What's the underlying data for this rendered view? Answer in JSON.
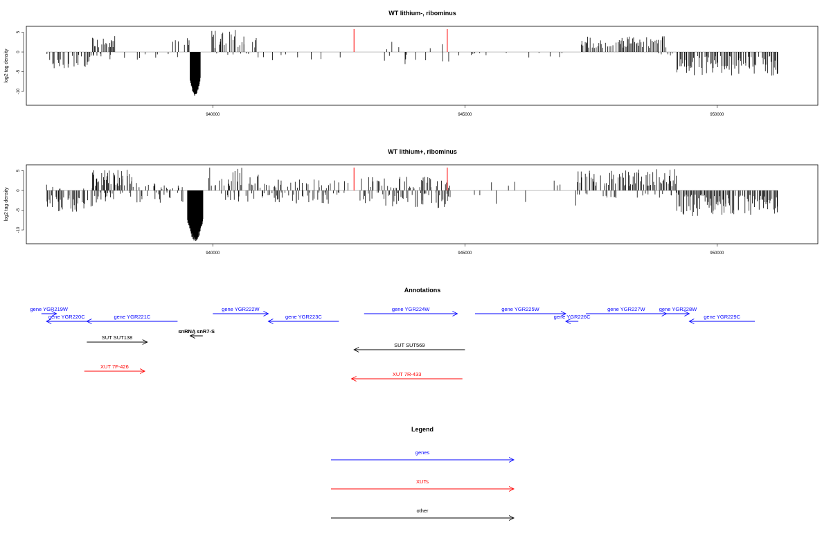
{
  "colors": {
    "positive": "#000000",
    "highlight": "#ff0000",
    "baseline": "#999999",
    "genes": "#0000ff",
    "xuts": "#ff0000",
    "other": "#000000"
  },
  "chart_data": [
    {
      "type": "bar",
      "title": "WT lithium-, ribominus",
      "ylabel": "log2 tag density",
      "xlim": [
        936300,
        952000
      ],
      "ylim": [
        -13.5,
        6.5
      ],
      "xticks": [
        940000,
        945000,
        950000
      ],
      "xtick_labels": [
        "940000",
        "945000",
        "950000"
      ],
      "yticks": [
        5,
        0,
        -5,
        -10
      ],
      "ytick_labels": [
        "5",
        "0",
        "-5",
        "-10"
      ],
      "grid": false,
      "segments": [
        {
          "x": [
            936700,
            937600
          ],
          "sign": -1,
          "min": 0.5,
          "max": 4.3,
          "density": 0.55
        },
        {
          "x": [
            937600,
            938050
          ],
          "sign": 1,
          "min": 1.0,
          "max": 4.6,
          "density": 0.7
        },
        {
          "x": [
            937600,
            939400
          ],
          "sign": -1,
          "min": 0.3,
          "max": 3.0,
          "density": 0.15
        },
        {
          "x": [
            939200,
            939550
          ],
          "sign": 1,
          "min": 1.0,
          "max": 3.5,
          "density": 0.4
        },
        {
          "x": [
            939550,
            939750
          ],
          "sign": -1,
          "min": 2.0,
          "max": 11.3,
          "density": 1.0,
          "block": true
        },
        {
          "x": [
            939950,
            940850
          ],
          "sign": 1,
          "min": 1.0,
          "max": 5.6,
          "density": 0.5
        },
        {
          "x": [
            940000,
            941000
          ],
          "sign": -1,
          "min": 0.3,
          "max": 2.0,
          "density": 0.15
        },
        {
          "x": [
            941000,
            942600
          ],
          "sign": -1,
          "min": 0.3,
          "max": 2.5,
          "density": 0.1
        },
        {
          "x": [
            943400,
            944700
          ],
          "sign": 1,
          "min": 0.5,
          "max": 3.0,
          "density": 0.12
        },
        {
          "x": [
            943400,
            944900
          ],
          "sign": -1,
          "min": 0.3,
          "max": 3.5,
          "density": 0.15
        },
        {
          "x": [
            945000,
            947200
          ],
          "sign": -1,
          "min": 0.2,
          "max": 1.5,
          "density": 0.05
        },
        {
          "x": [
            947300,
            949000
          ],
          "sign": 1,
          "min": 1.0,
          "max": 4.0,
          "density": 0.55
        },
        {
          "x": [
            948800,
            949200
          ],
          "sign": -1,
          "min": 0.3,
          "max": 1.5,
          "density": 0.2
        },
        {
          "x": [
            949200,
            951200
          ],
          "sign": -1,
          "min": 1.0,
          "max": 6.0,
          "density": 0.75
        }
      ],
      "highlights": [
        {
          "x": 942800,
          "y": 5.8
        },
        {
          "x": 944650,
          "y": 5.8
        }
      ]
    },
    {
      "type": "bar",
      "title": "WT lithium+, ribominus",
      "ylabel": "log2 tag density",
      "xlim": [
        936300,
        952000
      ],
      "ylim": [
        -13.5,
        6.5
      ],
      "xticks": [
        940000,
        945000,
        950000
      ],
      "xtick_labels": [
        "940000",
        "945000",
        "950000"
      ],
      "yticks": [
        5,
        0,
        -5,
        -10
      ],
      "ytick_labels": [
        "5",
        "0",
        "-5",
        "-10"
      ],
      "grid": false,
      "segments": [
        {
          "x": [
            936700,
            937600
          ],
          "sign": -1,
          "min": 1.0,
          "max": 5.5,
          "density": 0.75
        },
        {
          "x": [
            936700,
            937600
          ],
          "sign": 1,
          "min": 0.3,
          "max": 1.5,
          "density": 0.1
        },
        {
          "x": [
            937600,
            938400
          ],
          "sign": 1,
          "min": 1.0,
          "max": 5.5,
          "density": 0.8
        },
        {
          "x": [
            937600,
            939400
          ],
          "sign": -1,
          "min": 0.5,
          "max": 3.5,
          "density": 0.35
        },
        {
          "x": [
            938400,
            939400
          ],
          "sign": 1,
          "min": 0.3,
          "max": 2.0,
          "density": 0.2
        },
        {
          "x": [
            939500,
            939800
          ],
          "sign": -1,
          "min": 2.0,
          "max": 13.0,
          "density": 1.0,
          "block": true
        },
        {
          "x": [
            939900,
            940900
          ],
          "sign": 1,
          "min": 1.0,
          "max": 5.8,
          "density": 0.6
        },
        {
          "x": [
            940100,
            941600
          ],
          "sign": -1,
          "min": 0.5,
          "max": 3.0,
          "density": 0.4
        },
        {
          "x": [
            940900,
            942700
          ],
          "sign": 1,
          "min": 0.5,
          "max": 3.0,
          "density": 0.35
        },
        {
          "x": [
            941600,
            942700
          ],
          "sign": -1,
          "min": 0.5,
          "max": 3.5,
          "density": 0.45
        },
        {
          "x": [
            942900,
            944700
          ],
          "sign": 1,
          "min": 0.5,
          "max": 3.5,
          "density": 0.45
        },
        {
          "x": [
            942900,
            944700
          ],
          "sign": -1,
          "min": 0.5,
          "max": 4.5,
          "density": 0.5
        },
        {
          "x": [
            944700,
            947200
          ],
          "sign": 1,
          "min": 0.3,
          "max": 2.5,
          "density": 0.08
        },
        {
          "x": [
            944700,
            947200
          ],
          "sign": -1,
          "min": 0.3,
          "max": 4.0,
          "density": 0.05
        },
        {
          "x": [
            947200,
            949200
          ],
          "sign": 1,
          "min": 1.0,
          "max": 5.5,
          "density": 0.65
        },
        {
          "x": [
            947200,
            949200
          ],
          "sign": -1,
          "min": 0.5,
          "max": 2.0,
          "density": 0.2
        },
        {
          "x": [
            949200,
            951200
          ],
          "sign": -1,
          "min": 1.0,
          "max": 6.5,
          "density": 0.85
        }
      ],
      "highlights": [
        {
          "x": 942800,
          "y": 5.8
        },
        {
          "x": 944650,
          "y": 5.8
        }
      ]
    }
  ],
  "annotations": {
    "title": "Annotations",
    "features": [
      {
        "label": "gene YGR219W",
        "kind": "gene",
        "start": 936600,
        "end": 936900,
        "strand": "+",
        "row": 0
      },
      {
        "label": "gene YGR220C",
        "kind": "gene",
        "start": 936700,
        "end": 937500,
        "strand": "-",
        "row": 1
      },
      {
        "label": "gene YGR221C",
        "kind": "gene",
        "start": 937500,
        "end": 939300,
        "strand": "-",
        "row": 1
      },
      {
        "label": "gene YGR222W",
        "kind": "gene",
        "start": 940000,
        "end": 941100,
        "strand": "+",
        "row": 0
      },
      {
        "label": "gene YGR223C",
        "kind": "gene",
        "start": 941100,
        "end": 942500,
        "strand": "-",
        "row": 1
      },
      {
        "label": "gene YGR224W",
        "kind": "gene",
        "start": 943000,
        "end": 944850,
        "strand": "+",
        "row": 0
      },
      {
        "label": "gene YGR225W",
        "kind": "gene",
        "start": 945200,
        "end": 947000,
        "strand": "+",
        "row": 0
      },
      {
        "label": "gene YGR226C",
        "kind": "gene",
        "start": 947000,
        "end": 947250,
        "strand": "-",
        "row": 1
      },
      {
        "label": "gene YGR227W",
        "kind": "gene",
        "start": 947400,
        "end": 949000,
        "strand": "+",
        "row": 0
      },
      {
        "label": "gene YGR228W",
        "kind": "gene",
        "start": 949000,
        "end": 949450,
        "strand": "+",
        "row": 0
      },
      {
        "label": "gene YGR229C",
        "kind": "gene",
        "start": 949450,
        "end": 950750,
        "strand": "-",
        "row": 1
      },
      {
        "label": "snRNA snR7-S",
        "kind": "other",
        "start": 939550,
        "end": 939800,
        "strand": "-",
        "row": 2
      },
      {
        "label": "SUT SUT138",
        "kind": "other",
        "start": 937500,
        "end": 938700,
        "strand": "+",
        "row": 3
      },
      {
        "label": "SUT SUT569",
        "kind": "other",
        "start": 942800,
        "end": 945000,
        "strand": "-",
        "row": 4
      },
      {
        "label": "XUT 7F-426",
        "kind": "xut",
        "start": 937450,
        "end": 938650,
        "strand": "+",
        "row": 5
      },
      {
        "label": "XUT 7R-433",
        "kind": "xut",
        "start": 942750,
        "end": 944950,
        "strand": "-",
        "row": 6
      }
    ]
  },
  "legend": {
    "title": "Legend",
    "items": [
      {
        "label": "genes",
        "kind": "gene"
      },
      {
        "label": "XUTs",
        "kind": "xut"
      },
      {
        "label": "other",
        "kind": "other"
      }
    ]
  }
}
